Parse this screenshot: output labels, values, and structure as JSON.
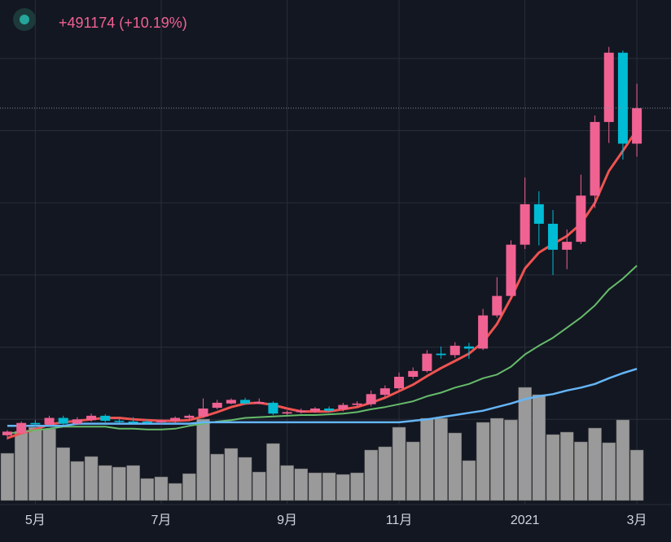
{
  "header": {
    "change_label": "+491174 (+10.19%)"
  },
  "chart_data": {
    "type": "candlestick",
    "categories": [
      null,
      null,
      "5月",
      null,
      null,
      null,
      null,
      null,
      null,
      null,
      null,
      "7月",
      null,
      null,
      null,
      null,
      null,
      null,
      null,
      null,
      "9月",
      null,
      null,
      null,
      null,
      null,
      null,
      null,
      "11月",
      null,
      null,
      null,
      null,
      null,
      null,
      null,
      null,
      "2021",
      null,
      null,
      null,
      null,
      null,
      null,
      null,
      "3月"
    ],
    "candles": {
      "open": [
        780000,
        810000,
        950000,
        930000,
        1020000,
        940000,
        990000,
        1050000,
        980000,
        970000,
        970000,
        960000,
        980000,
        1020000,
        1040000,
        1160000,
        1220000,
        1270000,
        1220000,
        1230000,
        1080000,
        1100000,
        1110000,
        1150000,
        1140000,
        1200000,
        1210000,
        1340000,
        1430000,
        1590000,
        1670000,
        1910000,
        1890000,
        2010000,
        1980000,
        2440000,
        2710000,
        3420000,
        3980000,
        3710000,
        3350000,
        3460000,
        4100000,
        5120000,
        6080000,
        4820000
      ],
      "high": [
        850000,
        970000,
        990000,
        1050000,
        1050000,
        1030000,
        1080000,
        1070000,
        1020000,
        1030000,
        1000000,
        1000000,
        1040000,
        1070000,
        1290000,
        1270000,
        1290000,
        1300000,
        1290000,
        1250000,
        1120000,
        1150000,
        1170000,
        1180000,
        1230000,
        1250000,
        1400000,
        1470000,
        1650000,
        1720000,
        1960000,
        2010000,
        2070000,
        2060000,
        2530000,
        2970000,
        3480000,
        4350000,
        4160000,
        3900000,
        3630000,
        4390000,
        5210000,
        6160000,
        6110000,
        5650000
      ],
      "low": [
        720000,
        780000,
        900000,
        900000,
        920000,
        920000,
        970000,
        960000,
        950000,
        940000,
        940000,
        930000,
        950000,
        990000,
        1020000,
        1140000,
        1210000,
        1200000,
        1210000,
        1060000,
        1060000,
        1080000,
        1090000,
        1100000,
        1110000,
        1170000,
        1180000,
        1310000,
        1400000,
        1560000,
        1650000,
        1840000,
        1850000,
        1840000,
        1960000,
        2410000,
        2660000,
        3360000,
        3410000,
        3000000,
        3080000,
        3430000,
        3930000,
        4830000,
        4600000,
        4640000
      ],
      "close": [
        830000,
        950000,
        930000,
        1020000,
        940000,
        1000000,
        1050000,
        980000,
        970000,
        960000,
        960000,
        980000,
        1020000,
        1050000,
        1150000,
        1230000,
        1270000,
        1220000,
        1240000,
        1080000,
        1100000,
        1120000,
        1150000,
        1120000,
        1200000,
        1220000,
        1350000,
        1430000,
        1590000,
        1670000,
        1910000,
        1890000,
        2020000,
        1980000,
        2440000,
        2710000,
        3420000,
        3980000,
        3710000,
        3350000,
        3460000,
        4100000,
        5120000,
        6080000,
        4820000,
        5311174
      ]
    },
    "up_color": "#f06292",
    "down_color": "#00bcd4",
    "series": [
      {
        "color": "#ef5350",
        "width": 3,
        "values": [
          740000,
          810000,
          860000,
          930000,
          960000,
          980000,
          1000000,
          1020000,
          1020000,
          1000000,
          990000,
          980000,
          980000,
          990000,
          1040000,
          1100000,
          1170000,
          1220000,
          1230000,
          1200000,
          1150000,
          1110000,
          1110000,
          1110000,
          1140000,
          1170000,
          1230000,
          1300000,
          1390000,
          1480000,
          1600000,
          1710000,
          1810000,
          1910000,
          2070000,
          2320000,
          2680000,
          3090000,
          3310000,
          3430000,
          3540000,
          3710000,
          4000000,
          4440000,
          4720000,
          5010000
        ]
      },
      {
        "color": "#66bb6a",
        "width": 2,
        "values": [
          800000,
          830000,
          850000,
          870000,
          900000,
          900000,
          900000,
          900000,
          870000,
          870000,
          860000,
          860000,
          870000,
          910000,
          940000,
          970000,
          990000,
          1020000,
          1030000,
          1040000,
          1050000,
          1060000,
          1060000,
          1070000,
          1080000,
          1100000,
          1140000,
          1170000,
          1210000,
          1250000,
          1320000,
          1370000,
          1440000,
          1490000,
          1570000,
          1620000,
          1730000,
          1900000,
          2020000,
          2130000,
          2270000,
          2410000,
          2580000,
          2800000,
          2950000,
          3130000
        ]
      },
      {
        "color": "#64b5f6",
        "width": 2.5,
        "values": [
          910000,
          910000,
          910000,
          910000,
          910000,
          940000,
          940000,
          940000,
          940000,
          940000,
          940000,
          940000,
          940000,
          940000,
          960000,
          960000,
          960000,
          960000,
          960000,
          960000,
          960000,
          960000,
          960000,
          960000,
          960000,
          960000,
          960000,
          960000,
          960000,
          980000,
          1000000,
          1030000,
          1060000,
          1090000,
          1120000,
          1170000,
          1220000,
          1280000,
          1320000,
          1350000,
          1400000,
          1440000,
          1490000,
          1570000,
          1640000,
          1700000
        ]
      }
    ],
    "volume": {
      "color": "#9a9a9a",
      "values": [
        58,
        85,
        90,
        88,
        65,
        48,
        54,
        43,
        41,
        43,
        27,
        29,
        21,
        33,
        100,
        57,
        64,
        53,
        35,
        70,
        43,
        39,
        34,
        34,
        32,
        34,
        62,
        66,
        90,
        72,
        101,
        101,
        83,
        49,
        96,
        101,
        99,
        139,
        130,
        81,
        84,
        72,
        89,
        71,
        99,
        62
      ],
      "vlim": [
        0,
        615
      ]
    },
    "ylim": [
      0,
      6810000
    ],
    "yticks": [
      1000000,
      2000000,
      3000000,
      4000000,
      5000000,
      6000000
    ],
    "grid": true
  }
}
